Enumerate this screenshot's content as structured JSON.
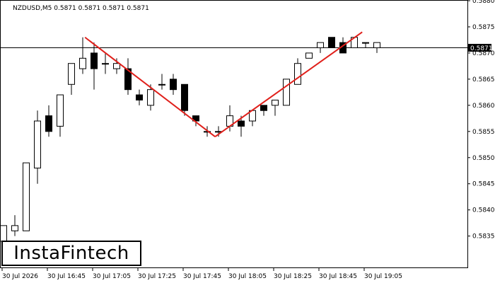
{
  "header": {
    "title": "NZDUSD,M5  0.5871 0.5871 0.5871 0.5871"
  },
  "logo": {
    "text": "InstaFintech"
  },
  "price_tag": {
    "value": "0.5871"
  },
  "chart_data": {
    "type": "candlestick",
    "symbol": "NZDUSD",
    "timeframe": "M5",
    "ylim": [
      0.5829,
      0.588
    ],
    "y_ticks": [
      "0.5880",
      "0.5875",
      "0.5870",
      "0.5865",
      "0.5860",
      "0.5855",
      "0.5850",
      "0.5845",
      "0.5840",
      "0.5835"
    ],
    "x_ticks": [
      "30 Jul 2026",
      "30 Jul 16:45",
      "30 Jul 17:05",
      "30 Jul 17:25",
      "30 Jul 17:45",
      "30 Jul 18:05",
      "30 Jul 18:25",
      "30 Jul 18:45",
      "30 Jul 19:05"
    ],
    "current_price": 0.5871,
    "grid": false,
    "candles": [
      {
        "o": 0.5834,
        "h": 0.5837,
        "l": 0.5833,
        "c": 0.5837
      },
      {
        "o": 0.5836,
        "h": 0.5839,
        "l": 0.5835,
        "c": 0.5837
      },
      {
        "o": 0.5836,
        "h": 0.5849,
        "l": 0.5836,
        "c": 0.5849
      },
      {
        "o": 0.5848,
        "h": 0.5859,
        "l": 0.5845,
        "c": 0.5857
      },
      {
        "o": 0.5858,
        "h": 0.586,
        "l": 0.5854,
        "c": 0.5855
      },
      {
        "o": 0.5856,
        "h": 0.5862,
        "l": 0.5854,
        "c": 0.5862
      },
      {
        "o": 0.5864,
        "h": 0.5868,
        "l": 0.5862,
        "c": 0.5868
      },
      {
        "o": 0.5867,
        "h": 0.5873,
        "l": 0.5866,
        "c": 0.5869
      },
      {
        "o": 0.587,
        "h": 0.5872,
        "l": 0.5863,
        "c": 0.5867
      },
      {
        "o": 0.5868,
        "h": 0.587,
        "l": 0.5866,
        "c": 0.5868
      },
      {
        "o": 0.5867,
        "h": 0.5869,
        "l": 0.5866,
        "c": 0.5868
      },
      {
        "o": 0.5867,
        "h": 0.5869,
        "l": 0.5862,
        "c": 0.5863
      },
      {
        "o": 0.5862,
        "h": 0.5863,
        "l": 0.586,
        "c": 0.5861
      },
      {
        "o": 0.586,
        "h": 0.5864,
        "l": 0.5859,
        "c": 0.5863
      },
      {
        "o": 0.5864,
        "h": 0.5866,
        "l": 0.5863,
        "c": 0.5864
      },
      {
        "o": 0.5865,
        "h": 0.5866,
        "l": 0.5862,
        "c": 0.5863
      },
      {
        "o": 0.5864,
        "h": 0.5864,
        "l": 0.5858,
        "c": 0.5859
      },
      {
        "o": 0.5858,
        "h": 0.5858,
        "l": 0.5856,
        "c": 0.5857
      },
      {
        "o": 0.5855,
        "h": 0.5856,
        "l": 0.5854,
        "c": 0.5855
      },
      {
        "o": 0.5855,
        "h": 0.5856,
        "l": 0.5854,
        "c": 0.5855
      },
      {
        "o": 0.5856,
        "h": 0.586,
        "l": 0.5855,
        "c": 0.5858
      },
      {
        "o": 0.5857,
        "h": 0.5858,
        "l": 0.5854,
        "c": 0.5856
      },
      {
        "o": 0.5857,
        "h": 0.5859,
        "l": 0.5856,
        "c": 0.5859
      },
      {
        "o": 0.586,
        "h": 0.586,
        "l": 0.5858,
        "c": 0.5859
      },
      {
        "o": 0.586,
        "h": 0.5861,
        "l": 0.5858,
        "c": 0.5861
      },
      {
        "o": 0.586,
        "h": 0.5865,
        "l": 0.586,
        "c": 0.5865
      },
      {
        "o": 0.5864,
        "h": 0.5869,
        "l": 0.5864,
        "c": 0.5868
      },
      {
        "o": 0.5869,
        "h": 0.587,
        "l": 0.5869,
        "c": 0.587
      },
      {
        "o": 0.5871,
        "h": 0.5872,
        "l": 0.587,
        "c": 0.5872
      },
      {
        "o": 0.5873,
        "h": 0.5873,
        "l": 0.5871,
        "c": 0.5871
      },
      {
        "o": 0.5872,
        "h": 0.5873,
        "l": 0.587,
        "c": 0.587
      },
      {
        "o": 0.5871,
        "h": 0.5873,
        "l": 0.5871,
        "c": 0.5873
      },
      {
        "o": 0.5872,
        "h": 0.5872,
        "l": 0.5871,
        "c": 0.5872
      },
      {
        "o": 0.5871,
        "h": 0.5872,
        "l": 0.587,
        "c": 0.5872
      }
    ],
    "pattern_lines": [
      {
        "x1": 7.2,
        "y1": 0.5873,
        "x2": 18.7,
        "y2": 0.5854
      },
      {
        "x1": 18.7,
        "y1": 0.5854,
        "x2": 31.7,
        "y2": 0.5874
      }
    ],
    "colors": {
      "pattern": "#e0201b",
      "bull_fill": "#ffffff",
      "bear_fill": "#000000",
      "candle_stroke": "#000000"
    }
  }
}
